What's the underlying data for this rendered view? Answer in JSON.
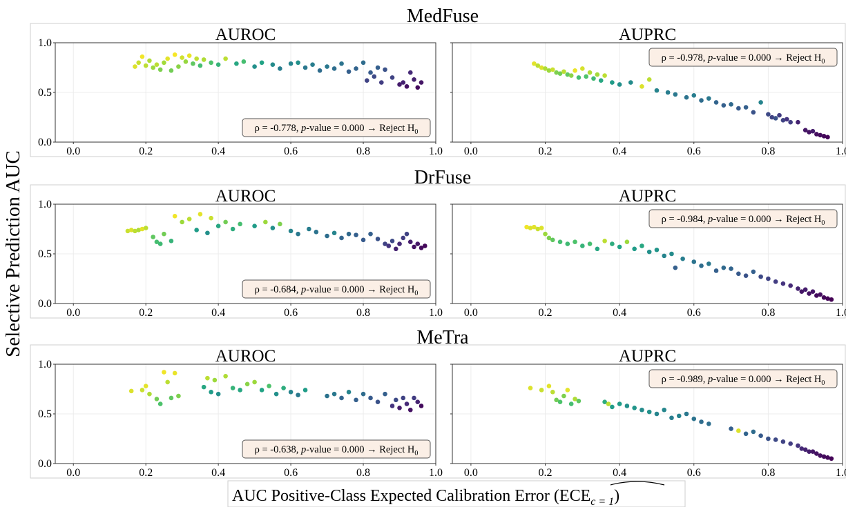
{
  "figure": {
    "ylabel": "Selective Prediction AUC",
    "xlabel": "AUC Positive-Class Expected Calibration Error (ECE",
    "xlabel_sub": "c = 1",
    "xlabel_close": ")",
    "colormap": [
      "#440154",
      "#46327e",
      "#365c8d",
      "#277f8e",
      "#1fa187",
      "#4ac16d",
      "#a0da39",
      "#fde725"
    ]
  },
  "chart_data": [
    {
      "type": "scatter",
      "group": "MedFuse",
      "panel": "AUROC",
      "xlim": [
        -0.05,
        1.0
      ],
      "ylim": [
        0,
        1
      ],
      "xticks": [
        "0.0",
        "0.2",
        "0.4",
        "0.6",
        "0.8",
        "1.0"
      ],
      "yticks": [
        "0.0",
        "0.5",
        "1.0"
      ],
      "grid": true,
      "legend_position": "bottom-right",
      "stat": {
        "text": "ρ = -0.778, ",
        "italic": "p",
        "text2": "-value = 0.000 → Reject H",
        "sub": "0"
      },
      "x": [
        0.17,
        0.18,
        0.19,
        0.2,
        0.21,
        0.22,
        0.23,
        0.24,
        0.25,
        0.26,
        0.27,
        0.28,
        0.29,
        0.3,
        0.31,
        0.32,
        0.33,
        0.34,
        0.35,
        0.36,
        0.38,
        0.4,
        0.42,
        0.45,
        0.47,
        0.5,
        0.52,
        0.55,
        0.57,
        0.6,
        0.62,
        0.64,
        0.66,
        0.68,
        0.7,
        0.72,
        0.74,
        0.76,
        0.78,
        0.8,
        0.81,
        0.82,
        0.83,
        0.84,
        0.85,
        0.86,
        0.88,
        0.9,
        0.91,
        0.92,
        0.93,
        0.94,
        0.95,
        0.96
      ],
      "y": [
        0.76,
        0.8,
        0.86,
        0.77,
        0.82,
        0.75,
        0.78,
        0.73,
        0.8,
        0.84,
        0.72,
        0.88,
        0.76,
        0.85,
        0.81,
        0.87,
        0.79,
        0.84,
        0.77,
        0.83,
        0.8,
        0.78,
        0.84,
        0.79,
        0.81,
        0.76,
        0.8,
        0.78,
        0.74,
        0.79,
        0.8,
        0.75,
        0.78,
        0.72,
        0.76,
        0.74,
        0.79,
        0.71,
        0.74,
        0.8,
        0.62,
        0.7,
        0.66,
        0.75,
        0.6,
        0.73,
        0.65,
        0.58,
        0.6,
        0.56,
        0.7,
        0.63,
        0.55,
        0.6
      ],
      "c": [
        0.95,
        0.92,
        0.98,
        0.9,
        0.88,
        0.85,
        0.9,
        0.8,
        0.86,
        0.96,
        0.78,
        0.99,
        0.82,
        0.93,
        0.84,
        0.97,
        0.75,
        0.91,
        0.7,
        0.88,
        0.72,
        0.65,
        0.9,
        0.6,
        0.7,
        0.5,
        0.58,
        0.48,
        0.42,
        0.45,
        0.5,
        0.4,
        0.42,
        0.35,
        0.4,
        0.36,
        0.38,
        0.3,
        0.32,
        0.35,
        0.2,
        0.28,
        0.22,
        0.3,
        0.18,
        0.25,
        0.2,
        0.08,
        0.1,
        0.05,
        0.12,
        0.09,
        0.03,
        0.06
      ]
    },
    {
      "type": "scatter",
      "group": "MedFuse",
      "panel": "AUPRC",
      "xlim": [
        -0.05,
        1.0
      ],
      "ylim": [
        0,
        1
      ],
      "xticks": [
        "0.0",
        "0.2",
        "0.4",
        "0.6",
        "0.8",
        "1.0"
      ],
      "yticks": [],
      "grid": true,
      "legend_position": "top-right",
      "stat": {
        "text": "ρ = -0.978, ",
        "italic": "p",
        "text2": "-value = 0.000 → Reject H",
        "sub": "0"
      },
      "x": [
        0.17,
        0.18,
        0.19,
        0.2,
        0.21,
        0.22,
        0.23,
        0.24,
        0.25,
        0.26,
        0.27,
        0.28,
        0.29,
        0.3,
        0.31,
        0.32,
        0.33,
        0.34,
        0.35,
        0.36,
        0.38,
        0.4,
        0.43,
        0.46,
        0.48,
        0.5,
        0.53,
        0.55,
        0.58,
        0.6,
        0.62,
        0.64,
        0.66,
        0.68,
        0.7,
        0.72,
        0.74,
        0.76,
        0.78,
        0.8,
        0.81,
        0.82,
        0.83,
        0.84,
        0.85,
        0.86,
        0.88,
        0.9,
        0.91,
        0.92,
        0.93,
        0.94,
        0.95,
        0.96
      ],
      "y": [
        0.79,
        0.77,
        0.75,
        0.74,
        0.72,
        0.73,
        0.7,
        0.69,
        0.71,
        0.68,
        0.67,
        0.72,
        0.65,
        0.74,
        0.66,
        0.7,
        0.64,
        0.68,
        0.62,
        0.67,
        0.6,
        0.58,
        0.6,
        0.56,
        0.63,
        0.52,
        0.5,
        0.48,
        0.45,
        0.47,
        0.42,
        0.44,
        0.4,
        0.37,
        0.38,
        0.34,
        0.35,
        0.3,
        0.4,
        0.28,
        0.25,
        0.24,
        0.27,
        0.22,
        0.23,
        0.2,
        0.2,
        0.12,
        0.1,
        0.11,
        0.08,
        0.07,
        0.06,
        0.05
      ],
      "c": [
        0.96,
        0.9,
        0.95,
        0.88,
        0.85,
        0.92,
        0.8,
        0.78,
        0.9,
        0.75,
        0.82,
        0.97,
        0.7,
        0.94,
        0.72,
        0.88,
        0.68,
        0.86,
        0.6,
        0.9,
        0.55,
        0.5,
        0.48,
        0.95,
        0.9,
        0.45,
        0.42,
        0.4,
        0.38,
        0.42,
        0.35,
        0.4,
        0.32,
        0.3,
        0.34,
        0.28,
        0.3,
        0.25,
        0.45,
        0.22,
        0.2,
        0.25,
        0.18,
        0.2,
        0.15,
        0.18,
        0.1,
        0.06,
        0.05,
        0.08,
        0.04,
        0.03,
        0.02,
        0.01
      ]
    },
    {
      "type": "scatter",
      "group": "DrFuse",
      "panel": "AUROC",
      "xlim": [
        -0.05,
        1.0
      ],
      "ylim": [
        0,
        1
      ],
      "xticks": [
        "0.0",
        "0.2",
        "0.4",
        "0.6",
        "0.8",
        "1.0"
      ],
      "yticks": [
        "0.0",
        "0.5",
        "1.0"
      ],
      "grid": true,
      "legend_position": "bottom-right",
      "stat": {
        "text": "ρ = -0.684, ",
        "italic": "p",
        "text2": "-value = 0.000 → Reject H",
        "sub": "0"
      },
      "x": [
        0.15,
        0.16,
        0.17,
        0.18,
        0.19,
        0.2,
        0.22,
        0.23,
        0.24,
        0.25,
        0.27,
        0.28,
        0.3,
        0.32,
        0.34,
        0.35,
        0.37,
        0.38,
        0.4,
        0.42,
        0.44,
        0.46,
        0.5,
        0.53,
        0.55,
        0.57,
        0.6,
        0.62,
        0.65,
        0.67,
        0.7,
        0.72,
        0.74,
        0.76,
        0.78,
        0.8,
        0.82,
        0.84,
        0.86,
        0.87,
        0.88,
        0.89,
        0.9,
        0.91,
        0.92,
        0.93,
        0.94,
        0.95,
        0.96,
        0.97
      ],
      "y": [
        0.73,
        0.74,
        0.73,
        0.74,
        0.75,
        0.76,
        0.67,
        0.62,
        0.6,
        0.7,
        0.63,
        0.88,
        0.82,
        0.85,
        0.74,
        0.9,
        0.71,
        0.86,
        0.78,
        0.82,
        0.75,
        0.8,
        0.78,
        0.82,
        0.76,
        0.8,
        0.73,
        0.7,
        0.75,
        0.72,
        0.68,
        0.71,
        0.66,
        0.7,
        0.69,
        0.64,
        0.7,
        0.65,
        0.6,
        0.58,
        0.63,
        0.55,
        0.6,
        0.66,
        0.7,
        0.62,
        0.57,
        0.6,
        0.56,
        0.58
      ],
      "c": [
        0.92,
        0.95,
        0.9,
        0.88,
        0.96,
        0.9,
        0.75,
        0.7,
        0.68,
        0.78,
        0.65,
        0.98,
        0.85,
        0.9,
        0.55,
        0.96,
        0.5,
        0.92,
        0.6,
        0.78,
        0.62,
        0.7,
        0.55,
        0.85,
        0.5,
        0.8,
        0.45,
        0.4,
        0.42,
        0.38,
        0.36,
        0.45,
        0.32,
        0.34,
        0.3,
        0.28,
        0.3,
        0.25,
        0.2,
        0.15,
        0.22,
        0.1,
        0.12,
        0.18,
        0.2,
        0.08,
        0.05,
        0.06,
        0.03,
        0.02
      ]
    },
    {
      "type": "scatter",
      "group": "DrFuse",
      "panel": "AUPRC",
      "xlim": [
        -0.05,
        1.0
      ],
      "ylim": [
        0,
        1
      ],
      "xticks": [
        "0.0",
        "0.2",
        "0.4",
        "0.6",
        "0.8",
        "1.0"
      ],
      "yticks": [],
      "grid": true,
      "legend_position": "top-right",
      "stat": {
        "text": "ρ = -0.984, ",
        "italic": "p",
        "text2": "-value = 0.000 → Reject H",
        "sub": "0"
      },
      "x": [
        0.15,
        0.16,
        0.17,
        0.18,
        0.19,
        0.2,
        0.21,
        0.22,
        0.24,
        0.26,
        0.28,
        0.3,
        0.32,
        0.34,
        0.36,
        0.38,
        0.4,
        0.42,
        0.44,
        0.46,
        0.48,
        0.5,
        0.52,
        0.54,
        0.55,
        0.57,
        0.6,
        0.62,
        0.64,
        0.66,
        0.68,
        0.7,
        0.72,
        0.74,
        0.76,
        0.78,
        0.8,
        0.82,
        0.84,
        0.86,
        0.88,
        0.89,
        0.9,
        0.91,
        0.92,
        0.93,
        0.94,
        0.95,
        0.96,
        0.97
      ],
      "y": [
        0.77,
        0.76,
        0.77,
        0.75,
        0.76,
        0.7,
        0.66,
        0.64,
        0.62,
        0.6,
        0.62,
        0.58,
        0.6,
        0.55,
        0.63,
        0.6,
        0.57,
        0.62,
        0.55,
        0.58,
        0.52,
        0.54,
        0.48,
        0.5,
        0.36,
        0.45,
        0.42,
        0.38,
        0.4,
        0.33,
        0.36,
        0.35,
        0.3,
        0.28,
        0.32,
        0.27,
        0.25,
        0.22,
        0.2,
        0.18,
        0.15,
        0.12,
        0.14,
        0.1,
        0.12,
        0.08,
        0.09,
        0.06,
        0.05,
        0.04
      ],
      "c": [
        0.98,
        0.95,
        0.96,
        0.92,
        0.95,
        0.85,
        0.8,
        0.75,
        0.7,
        0.68,
        0.72,
        0.65,
        0.7,
        0.6,
        0.9,
        0.62,
        0.58,
        0.85,
        0.55,
        0.6,
        0.5,
        0.52,
        0.45,
        0.48,
        0.3,
        0.42,
        0.38,
        0.35,
        0.4,
        0.3,
        0.34,
        0.32,
        0.28,
        0.25,
        0.3,
        0.22,
        0.2,
        0.18,
        0.15,
        0.12,
        0.1,
        0.06,
        0.08,
        0.05,
        0.06,
        0.03,
        0.04,
        0.02,
        0.01,
        0.0
      ]
    },
    {
      "type": "scatter",
      "group": "MeTra",
      "panel": "AUROC",
      "xlim": [
        -0.05,
        1.0
      ],
      "ylim": [
        0,
        1
      ],
      "xticks": [
        "0.0",
        "0.2",
        "0.4",
        "0.6",
        "0.8",
        "1.0"
      ],
      "yticks": [
        "0.0",
        "0.5",
        "1.0"
      ],
      "grid": true,
      "legend_position": "bottom-right",
      "stat": {
        "text": "ρ = -0.638, ",
        "italic": "p",
        "text2": "-value = 0.000 → Reject H",
        "sub": "0"
      },
      "x": [
        0.16,
        0.19,
        0.2,
        0.21,
        0.23,
        0.24,
        0.25,
        0.26,
        0.27,
        0.28,
        0.29,
        0.36,
        0.37,
        0.38,
        0.39,
        0.4,
        0.42,
        0.44,
        0.46,
        0.48,
        0.5,
        0.52,
        0.54,
        0.56,
        0.58,
        0.6,
        0.62,
        0.64,
        0.7,
        0.72,
        0.74,
        0.76,
        0.78,
        0.8,
        0.82,
        0.84,
        0.86,
        0.88,
        0.89,
        0.9,
        0.91,
        0.92,
        0.93,
        0.94,
        0.95,
        0.96
      ],
      "y": [
        0.73,
        0.74,
        0.78,
        0.7,
        0.65,
        0.6,
        0.92,
        0.82,
        0.66,
        0.91,
        0.68,
        0.77,
        0.86,
        0.72,
        0.84,
        0.7,
        0.88,
        0.76,
        0.74,
        0.8,
        0.82,
        0.74,
        0.78,
        0.7,
        0.76,
        0.72,
        0.69,
        0.74,
        0.68,
        0.7,
        0.66,
        0.72,
        0.64,
        0.7,
        0.66,
        0.62,
        0.7,
        0.58,
        0.64,
        0.56,
        0.66,
        0.6,
        0.54,
        0.66,
        0.62,
        0.58
      ],
      "c": [
        0.95,
        0.92,
        0.96,
        0.88,
        0.78,
        0.72,
        0.98,
        0.9,
        0.75,
        0.97,
        0.8,
        0.6,
        0.9,
        0.55,
        0.85,
        0.5,
        0.88,
        0.65,
        0.6,
        0.82,
        0.85,
        0.58,
        0.72,
        0.5,
        0.62,
        0.45,
        0.4,
        0.55,
        0.38,
        0.4,
        0.32,
        0.45,
        0.3,
        0.35,
        0.28,
        0.25,
        0.3,
        0.15,
        0.22,
        0.08,
        0.2,
        0.12,
        0.05,
        0.18,
        0.1,
        0.03
      ]
    },
    {
      "type": "scatter",
      "group": "MeTra",
      "panel": "AUPRC",
      "xlim": [
        -0.05,
        1.0
      ],
      "ylim": [
        0,
        1
      ],
      "xticks": [
        "0.0",
        "0.2",
        "0.4",
        "0.6",
        "0.8",
        "1.0"
      ],
      "yticks": [],
      "grid": true,
      "legend_position": "top-right",
      "stat": {
        "text": "ρ = -0.989, ",
        "italic": "p",
        "text2": "-value = 0.000 → Reject H",
        "sub": "0"
      },
      "x": [
        0.16,
        0.19,
        0.21,
        0.22,
        0.23,
        0.24,
        0.25,
        0.26,
        0.27,
        0.28,
        0.29,
        0.36,
        0.37,
        0.38,
        0.4,
        0.42,
        0.44,
        0.46,
        0.48,
        0.5,
        0.52,
        0.54,
        0.56,
        0.58,
        0.6,
        0.62,
        0.64,
        0.7,
        0.72,
        0.74,
        0.76,
        0.78,
        0.8,
        0.82,
        0.84,
        0.86,
        0.88,
        0.89,
        0.9,
        0.91,
        0.92,
        0.93,
        0.94,
        0.95,
        0.96,
        0.97
      ],
      "y": [
        0.76,
        0.74,
        0.78,
        0.72,
        0.64,
        0.62,
        0.68,
        0.74,
        0.6,
        0.65,
        0.63,
        0.62,
        0.6,
        0.57,
        0.6,
        0.58,
        0.56,
        0.54,
        0.52,
        0.5,
        0.54,
        0.46,
        0.48,
        0.5,
        0.45,
        0.42,
        0.4,
        0.35,
        0.33,
        0.3,
        0.32,
        0.28,
        0.25,
        0.24,
        0.22,
        0.2,
        0.18,
        0.15,
        0.14,
        0.12,
        0.12,
        0.1,
        0.08,
        0.07,
        0.06,
        0.05
      ],
      "c": [
        0.95,
        0.92,
        0.96,
        0.9,
        0.78,
        0.72,
        0.8,
        0.96,
        0.7,
        0.88,
        0.75,
        0.62,
        0.9,
        0.55,
        0.55,
        0.5,
        0.52,
        0.48,
        0.5,
        0.45,
        0.46,
        0.42,
        0.44,
        0.4,
        0.38,
        0.35,
        0.36,
        0.3,
        0.95,
        0.32,
        0.35,
        0.28,
        0.25,
        0.22,
        0.2,
        0.18,
        0.15,
        0.12,
        0.1,
        0.08,
        0.06,
        0.05,
        0.04,
        0.03,
        0.02,
        0.01
      ]
    }
  ]
}
